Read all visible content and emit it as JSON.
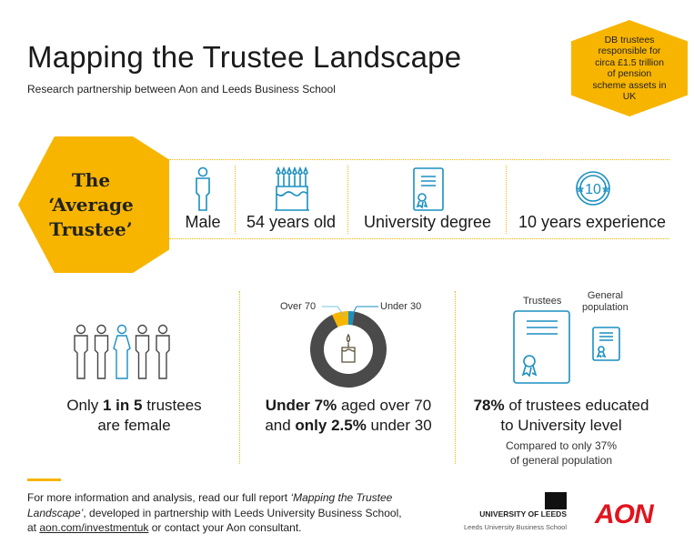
{
  "header": {
    "title": "Mapping the Trustee Landscape",
    "subtitle": "Research partnership between Aon and Leeds Business School"
  },
  "badge": {
    "text": "DB trustees responsible for circa £1.5 trillion of pension scheme assets in UK"
  },
  "average": {
    "line1": "The",
    "line2": "‘Average",
    "line3": "Trustee’",
    "attributes": [
      {
        "icon": "person-icon",
        "label": "Male"
      },
      {
        "icon": "birthday-cake-icon",
        "label": "54 years old"
      },
      {
        "icon": "certificate-icon",
        "label": "University degree"
      },
      {
        "icon": "ten-years-badge-icon",
        "label": "10 years experience"
      }
    ]
  },
  "gender": {
    "pre": "Only ",
    "bold": "1 in 5",
    "post": " trustees",
    "line2": "are female",
    "female_count": 1,
    "total": 5
  },
  "age": {
    "label_over": "Over 70",
    "label_under": "Under 30",
    "b1": "Under 7%",
    "t1": " aged over 70",
    "t2": "and ",
    "b2": "only 2.5%",
    "t3": " under 30",
    "over70_pct": 7,
    "under30_pct": 2.5,
    "colors": {
      "over70": "#F7B500",
      "under30": "#1a8fc0",
      "rest": "#4a4a4a"
    }
  },
  "education": {
    "label_trustees": "Trustees",
    "label_general1": "General",
    "label_general2": "population",
    "bold": "78%",
    "t1": " of trustees educated",
    "line2": "to University level",
    "note1": "Compared to only 37%",
    "note2": "of general population"
  },
  "footer": {
    "t1": "For  more information and analysis, read our full report ",
    "italic": "‘Mapping the Trustee Landscape’",
    "t2": ", developed in partnership with Leeds University Business School, at ",
    "link": "aon.com/investmentuk",
    "t3": " or contact your Aon consultant."
  },
  "logos": {
    "leeds1": "UNIVERSITY OF LEEDS",
    "leeds2": "Leeds University Business School",
    "aon": "AON"
  }
}
